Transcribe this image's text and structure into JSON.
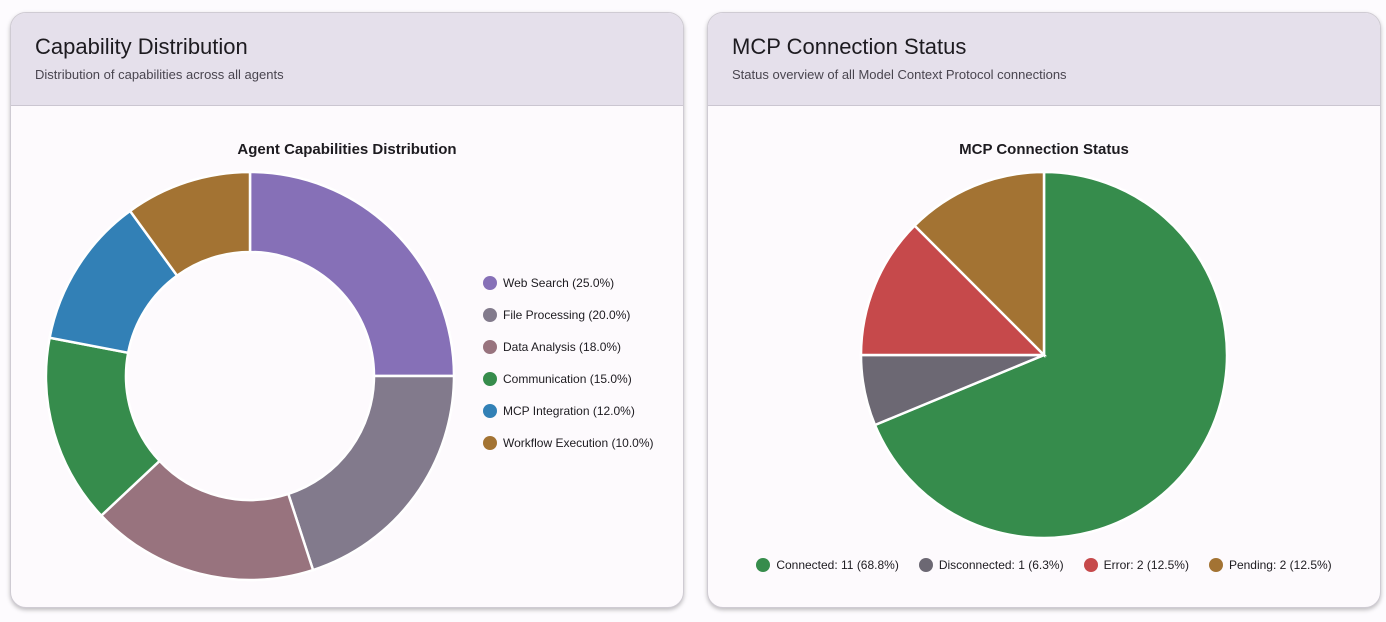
{
  "cards": [
    {
      "title": "Capability Distribution",
      "subtitle": "Distribution of capabilities across all agents"
    },
    {
      "title": "MCP Connection Status",
      "subtitle": "Status overview of all Model Context Protocol connections"
    }
  ],
  "chart_data": [
    {
      "type": "pie",
      "variant": "donut",
      "title": "Agent Capabilities Distribution",
      "legend_position": "right",
      "categories": [
        "Web Search",
        "File Processing",
        "Data Analysis",
        "Communication",
        "MCP Integration",
        "Workflow Execution"
      ],
      "values": [
        25.0,
        20.0,
        18.0,
        15.0,
        12.0,
        10.0
      ],
      "legend_labels": [
        "Web Search (25.0%)",
        "File Processing (20.0%)",
        "Data Analysis (18.0%)",
        "Communication (15.0%)",
        "MCP Integration (12.0%)",
        "Workflow Execution (10.0%)"
      ],
      "colors": [
        "#8670b7",
        "#827a8c",
        "#98737e",
        "#368c4c",
        "#3280b6",
        "#a37333"
      ]
    },
    {
      "type": "pie",
      "title": "MCP Connection Status",
      "legend_position": "bottom",
      "categories": [
        "Connected",
        "Disconnected",
        "Error",
        "Pending"
      ],
      "values": [
        11,
        1,
        2,
        2
      ],
      "percentages": [
        68.8,
        6.3,
        12.5,
        12.5
      ],
      "legend_labels": [
        "Connected: 11 (68.8%)",
        "Disconnected: 1 (6.3%)",
        "Error: 2 (12.5%)",
        "Pending: 2 (12.5%)"
      ],
      "colors": [
        "#368c4c",
        "#6c6873",
        "#c6494b",
        "#a37333"
      ]
    }
  ]
}
